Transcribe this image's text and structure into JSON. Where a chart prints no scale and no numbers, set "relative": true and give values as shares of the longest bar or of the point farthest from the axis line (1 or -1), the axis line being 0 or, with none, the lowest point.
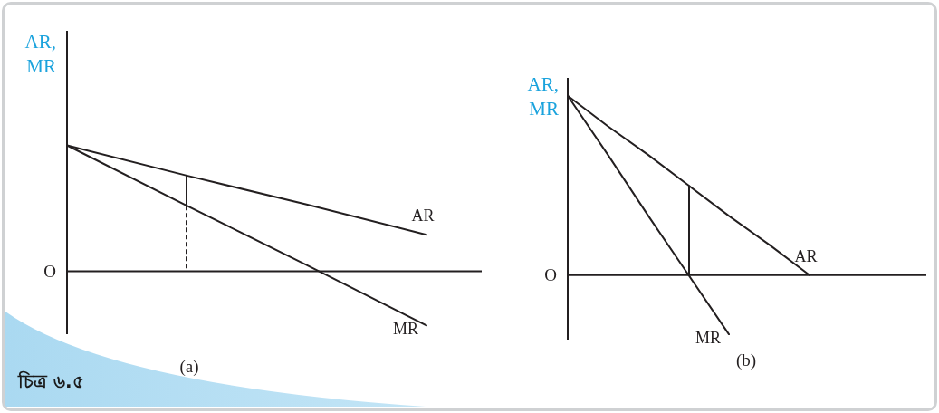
{
  "chart_data": [
    {
      "type": "line",
      "relative": true,
      "ylabel": "AR, MR",
      "categories": [
        null,
        null,
        null,
        null
      ],
      "series": [
        {
          "name": "AR",
          "color": "#231f20",
          "values": [
            1,
            0.76,
            0.53,
            0.29
          ]
        },
        {
          "name": "MR",
          "color": "#231f20",
          "values": [
            1,
            0.52,
            0.05,
            -0.43
          ]
        }
      ],
      "annotations": [
        "O",
        "(a)",
        "চিত্র ৬.৫"
      ]
    },
    {
      "type": "line",
      "relative": true,
      "ylabel": "AR, MR",
      "categories": [
        null,
        null,
        null,
        null,
        null,
        null,
        null
      ],
      "series": [
        {
          "name": "AR",
          "color": "#231f20",
          "values": [
            1,
            0.83,
            0.67,
            0.5,
            0.33,
            0.17,
            0
          ]
        },
        {
          "name": "MR",
          "color": "#231f20",
          "values": [
            1,
            0.67,
            0.33,
            0,
            -0.33,
            null,
            null
          ]
        }
      ],
      "annotations": [
        "O",
        "(b)"
      ]
    }
  ]
}
